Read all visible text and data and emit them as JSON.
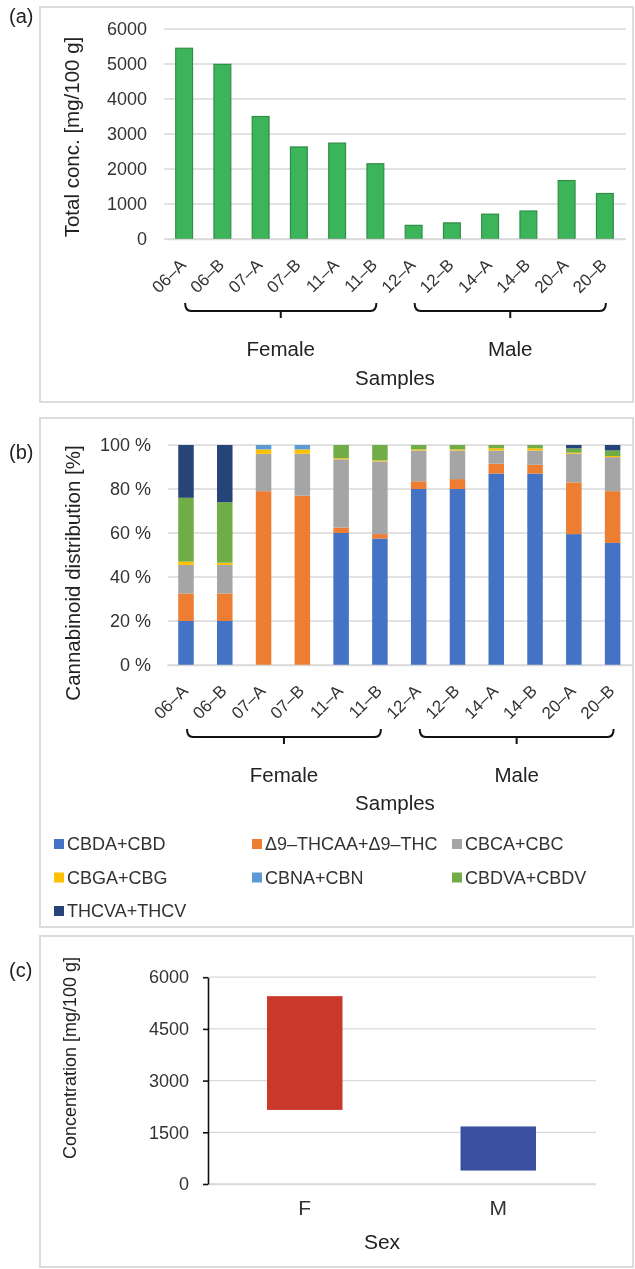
{
  "chart_data": [
    {
      "type": "bar",
      "title": "(a)",
      "xlabel": "Samples",
      "ylabel": "Total conc. [mg/100 g]",
      "categories": [
        "06–A",
        "06–B",
        "07–A",
        "07–B",
        "11–A",
        "11–B",
        "12–A",
        "12–B",
        "14–A",
        "14–B",
        "20–A",
        "20–B"
      ],
      "values": [
        5450,
        4990,
        3500,
        2630,
        2740,
        2150,
        390,
        460,
        710,
        800,
        1670,
        1300
      ],
      "color": "#3cb55a",
      "ylim": [
        0,
        6000
      ],
      "yticks": [
        0,
        1000,
        2000,
        3000,
        4000,
        5000,
        6000
      ],
      "grid": "y",
      "annotations": [
        "Female",
        "Male"
      ]
    },
    {
      "type": "bar",
      "stacked": true,
      "title": "(b)",
      "xlabel": "Samples",
      "ylabel": "Cannabinoid distribution [%]",
      "categories": [
        "06–A",
        "06–B",
        "07–A",
        "07–B",
        "11–A",
        "11–B",
        "12–A",
        "12–B",
        "14–A",
        "14–B",
        "20–A",
        "20–B"
      ],
      "series": [
        {
          "name": "CBDA+CBD",
          "color": "#4472c4",
          "values": [
            20,
            20,
            0,
            0,
            60,
            57.5,
            80,
            80,
            87,
            87,
            59.5,
            55.5
          ]
        },
        {
          "name": "Δ9–THCAA+Δ9–THC",
          "color": "#ed7d31",
          "values": [
            12.5,
            12.5,
            79,
            77,
            2.5,
            2,
            3.5,
            4.5,
            4.5,
            4,
            23.5,
            23.5
          ]
        },
        {
          "name": "CBCA+CBC",
          "color": "#a5a5a5",
          "values": [
            13,
            13,
            17,
            19,
            31,
            33,
            14,
            13,
            6,
            6.5,
            13,
            15.5
          ]
        },
        {
          "name": "CBGA+CBG",
          "color": "#ffc000",
          "values": [
            1.5,
            1,
            2,
            2,
            0.5,
            0.5,
            0.5,
            0.5,
            1,
            1,
            0.5,
            0.5
          ]
        },
        {
          "name": "CBNA+CBN",
          "color": "#5b9bd5",
          "values": [
            0,
            0,
            2,
            2,
            0,
            0,
            0,
            0,
            0,
            0,
            0,
            0
          ]
        },
        {
          "name": "CBDVA+CBDV",
          "color": "#70ad47",
          "values": [
            29,
            27.5,
            0,
            0,
            6,
            7,
            2,
            2,
            1.5,
            1.5,
            2,
            2.5
          ]
        },
        {
          "name": "THCVA+THCV",
          "color": "#264478",
          "values": [
            24,
            26,
            0,
            0,
            0,
            0,
            0,
            0,
            0,
            0,
            1.5,
            2.5
          ]
        }
      ],
      "ylim": [
        0,
        100
      ],
      "yticks": [
        {
          "value": 0,
          "label": "0 %"
        },
        {
          "value": 20,
          "label": "20 %"
        },
        {
          "value": 40,
          "label": "40 %"
        },
        {
          "value": 60,
          "label": "60 %"
        },
        {
          "value": 80,
          "label": "80 %"
        },
        {
          "value": 100,
          "label": "100 %"
        }
      ],
      "grid": "y",
      "legend": "bottom",
      "annotations": [
        "Female",
        "Male"
      ]
    },
    {
      "type": "bar",
      "title": "(c)",
      "xlabel": "Sex",
      "ylabel": "Concentration [mg/100 g]",
      "categories": [
        "F",
        "M"
      ],
      "values": [
        3300,
        1280
      ],
      "base": [
        2150,
        390
      ],
      "colors": [
        "#c9382a",
        "#3a4fa0"
      ],
      "ylim": [
        0,
        6000
      ],
      "yticks": [
        0,
        1500,
        3000,
        4500,
        6000
      ],
      "grid": "y"
    }
  ]
}
